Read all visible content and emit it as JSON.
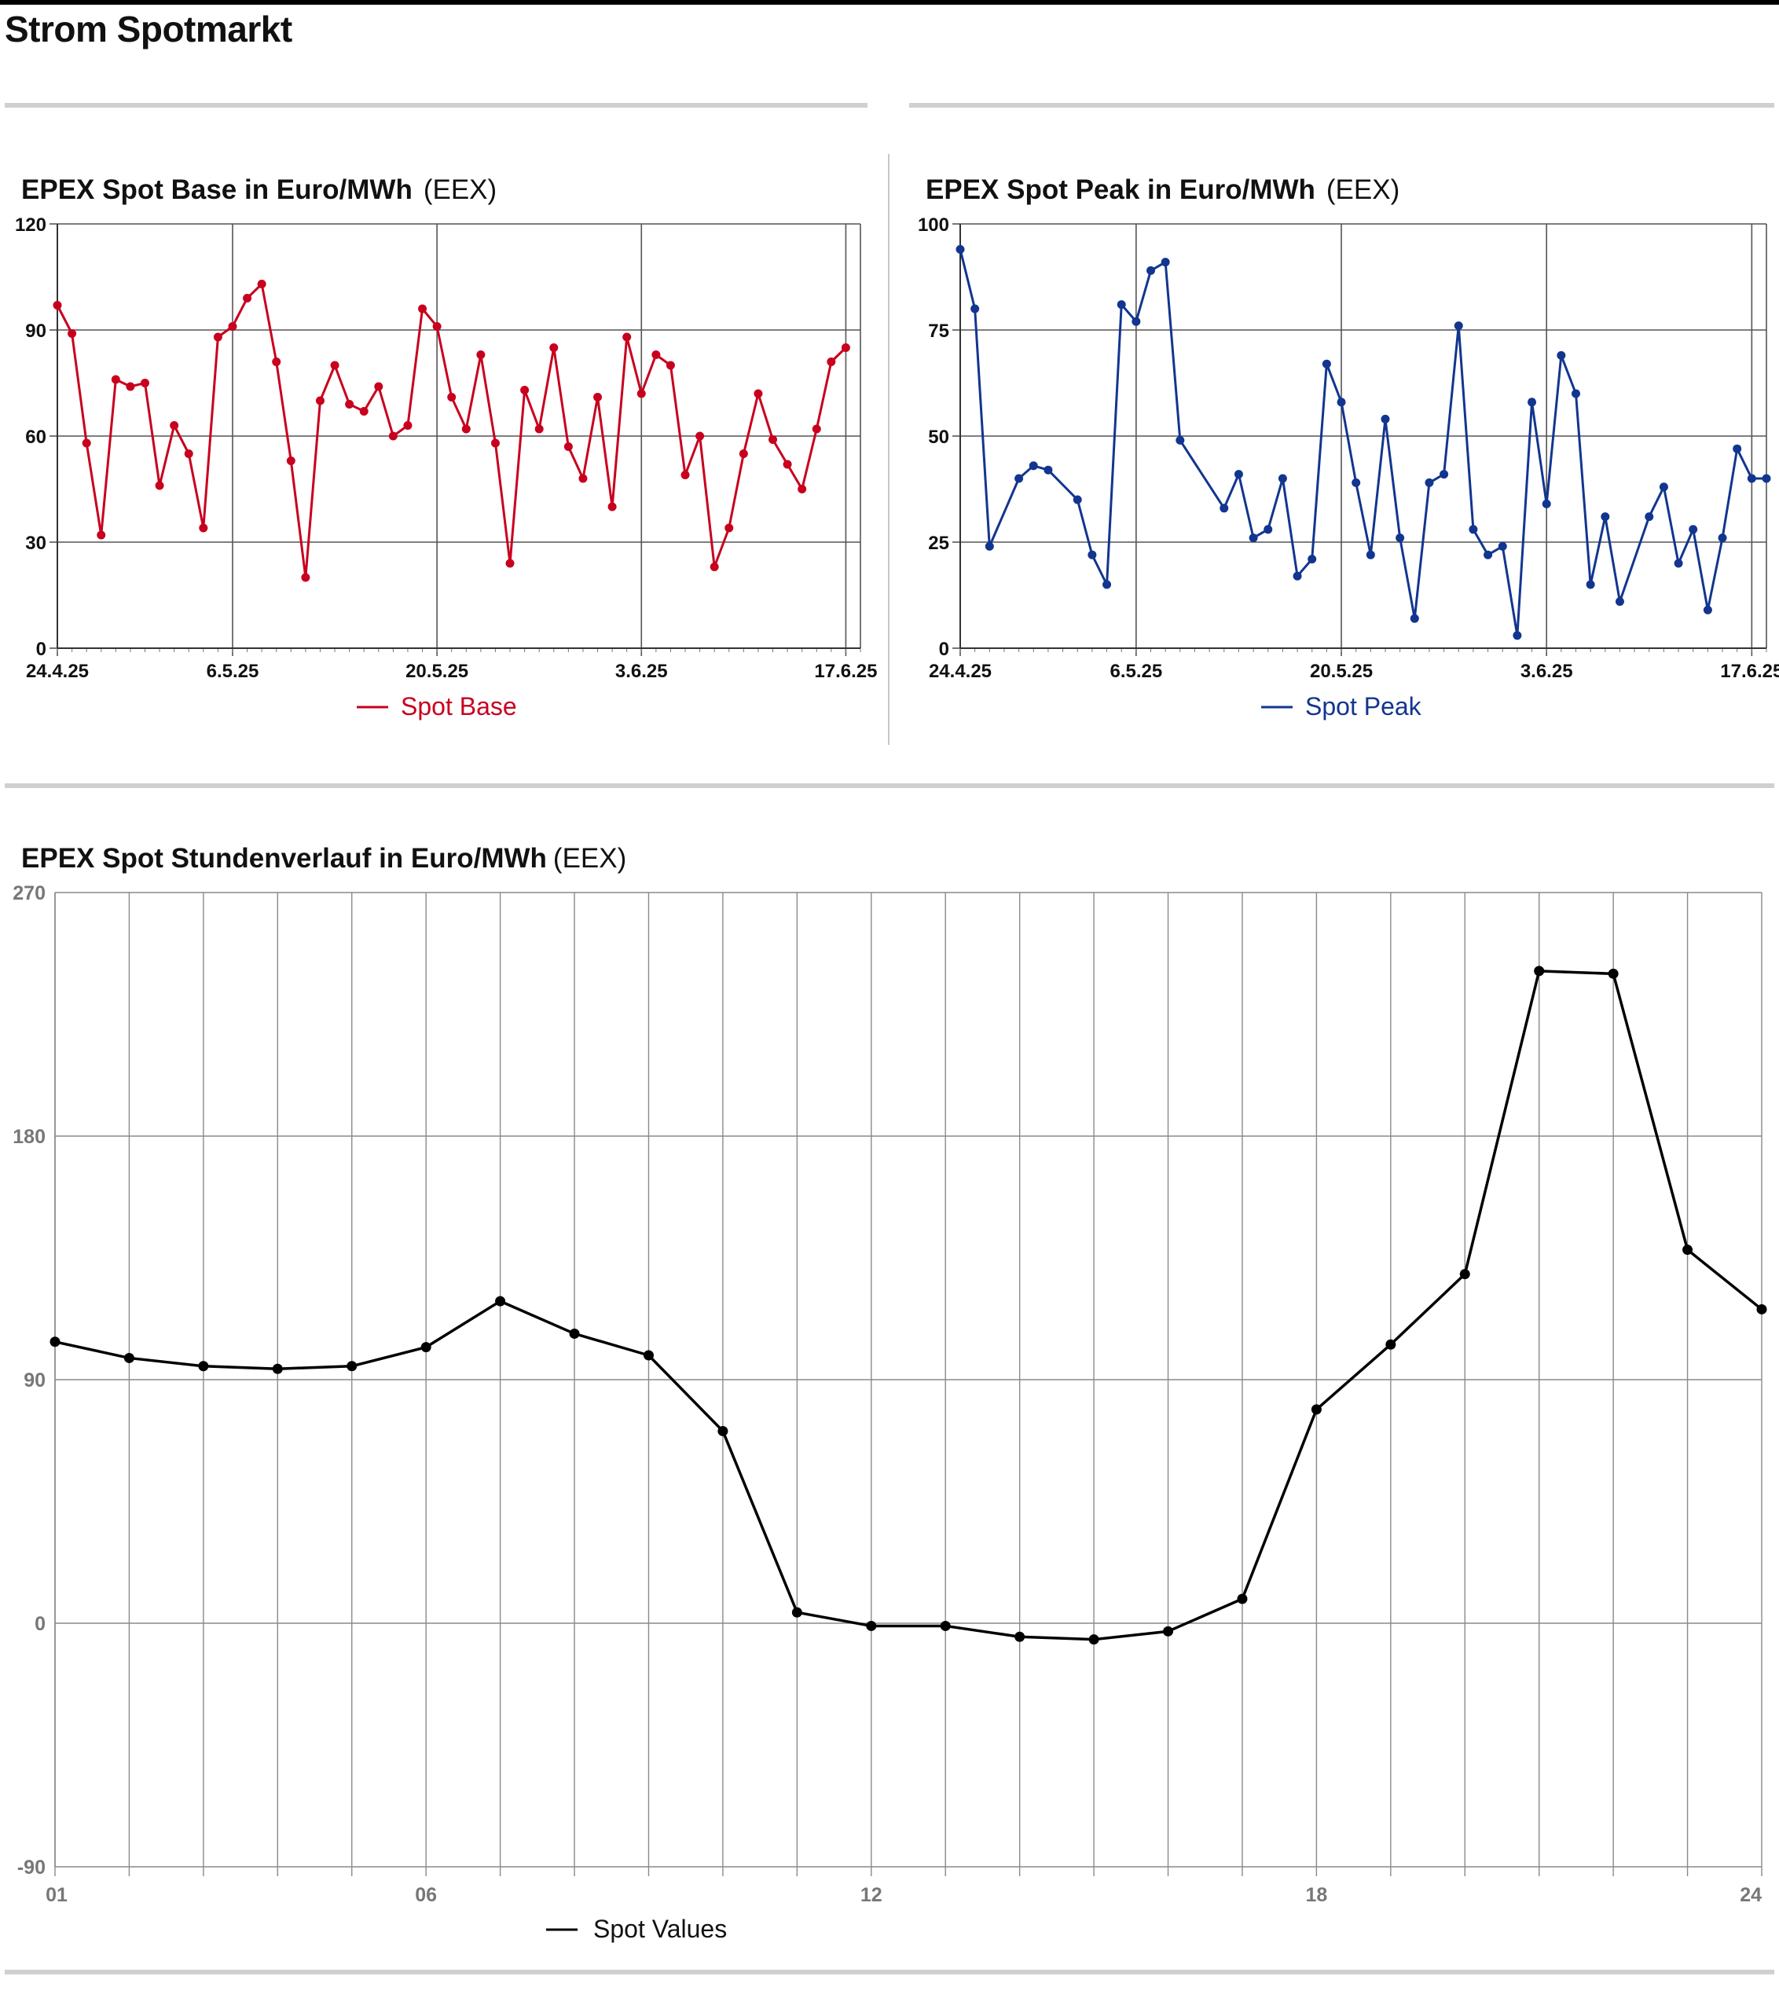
{
  "page": {
    "title": "Strom Spotmarkt",
    "colors": {
      "base": "#c8001e",
      "peak": "#12358f",
      "hourly": "#000000",
      "grid": "#888888"
    }
  },
  "chart_data": [
    {
      "id": "base",
      "type": "line",
      "title": "EPEX Spot Base in Euro/MWh",
      "source": "(EEX)",
      "xlabel": "",
      "ylabel": "",
      "ylim": [
        0,
        120
      ],
      "yticks": [
        "0",
        "30",
        "60",
        "90",
        "120"
      ],
      "xticks": [
        "24.4.25",
        "6.5.25",
        "20.5.25",
        "3.6.25",
        "17.6.25"
      ],
      "grid": true,
      "legend_position": "bottom-center",
      "series": [
        {
          "name": "Spot Base",
          "color": "#c8001e",
          "values": [
            97,
            89,
            58,
            32,
            76,
            74,
            75,
            46,
            63,
            55,
            34,
            88,
            91,
            99,
            103,
            81,
            53,
            20,
            70,
            80,
            69,
            67,
            74,
            60,
            63,
            96,
            91,
            71,
            62,
            83,
            58,
            24,
            73,
            62,
            85,
            57,
            48,
            71,
            40,
            88,
            72,
            83,
            80,
            49,
            60,
            23,
            34,
            55,
            72,
            59,
            52,
            45,
            62,
            81,
            85
          ]
        }
      ]
    },
    {
      "id": "peak",
      "type": "line",
      "title": "EPEX Spot Peak in Euro/MWh",
      "source": "(EEX)",
      "xlabel": "",
      "ylabel": "",
      "ylim": [
        0,
        100
      ],
      "yticks": [
        "0",
        "25",
        "50",
        "75",
        "100"
      ],
      "xticks": [
        "24.4.25",
        "6.5.25",
        "20.5.25",
        "3.6.25",
        "17.6.25"
      ],
      "grid": true,
      "legend_position": "bottom-center",
      "series": [
        {
          "name": "Spot Peak",
          "color": "#12358f",
          "x": [
            0,
            1,
            2,
            4,
            5,
            6,
            8,
            9,
            10,
            11,
            12,
            13,
            14,
            15,
            18,
            19,
            20,
            21,
            22,
            23,
            24,
            25,
            26,
            27,
            28,
            29,
            30,
            31,
            32,
            33,
            34,
            35,
            36,
            37,
            38,
            39,
            40,
            41,
            42,
            43,
            44,
            45,
            47,
            48,
            49,
            50,
            51,
            52,
            53,
            54,
            55
          ],
          "values": [
            94,
            80,
            24,
            40,
            43,
            42,
            35,
            22,
            15,
            81,
            77,
            89,
            91,
            49,
            33,
            41,
            26,
            28,
            40,
            17,
            21,
            67,
            58,
            39,
            22,
            54,
            26,
            7,
            39,
            41,
            76,
            28,
            22,
            24,
            3,
            58,
            34,
            69,
            60,
            15,
            31,
            11,
            31,
            38,
            20,
            28,
            9,
            26,
            47,
            40,
            40
          ]
        }
      ]
    },
    {
      "id": "hourly",
      "type": "line",
      "title": "EPEX Spot Stundenverlauf in Euro/MWh",
      "source": "(EEX)",
      "xlabel": "",
      "ylabel": "",
      "ylim": [
        -90,
        270
      ],
      "yticks": [
        "-90",
        "0",
        "90",
        "180",
        "270"
      ],
      "x": [
        1,
        2,
        3,
        4,
        5,
        6,
        7,
        8,
        9,
        10,
        11,
        12,
        13,
        14,
        15,
        16,
        17,
        18,
        19,
        20,
        21,
        22,
        23,
        24
      ],
      "xticks": [
        "01",
        "06",
        "12",
        "18",
        "24"
      ],
      "grid": true,
      "legend_position": "bottom-center",
      "series": [
        {
          "name": "Spot Values",
          "color": "#000000",
          "values": [
            104,
            98,
            95,
            94,
            95,
            102,
            119,
            107,
            99,
            71,
            4,
            -1,
            -1,
            -5,
            -6,
            -3,
            9,
            79,
            103,
            129,
            241,
            240,
            138,
            116
          ]
        }
      ]
    }
  ]
}
